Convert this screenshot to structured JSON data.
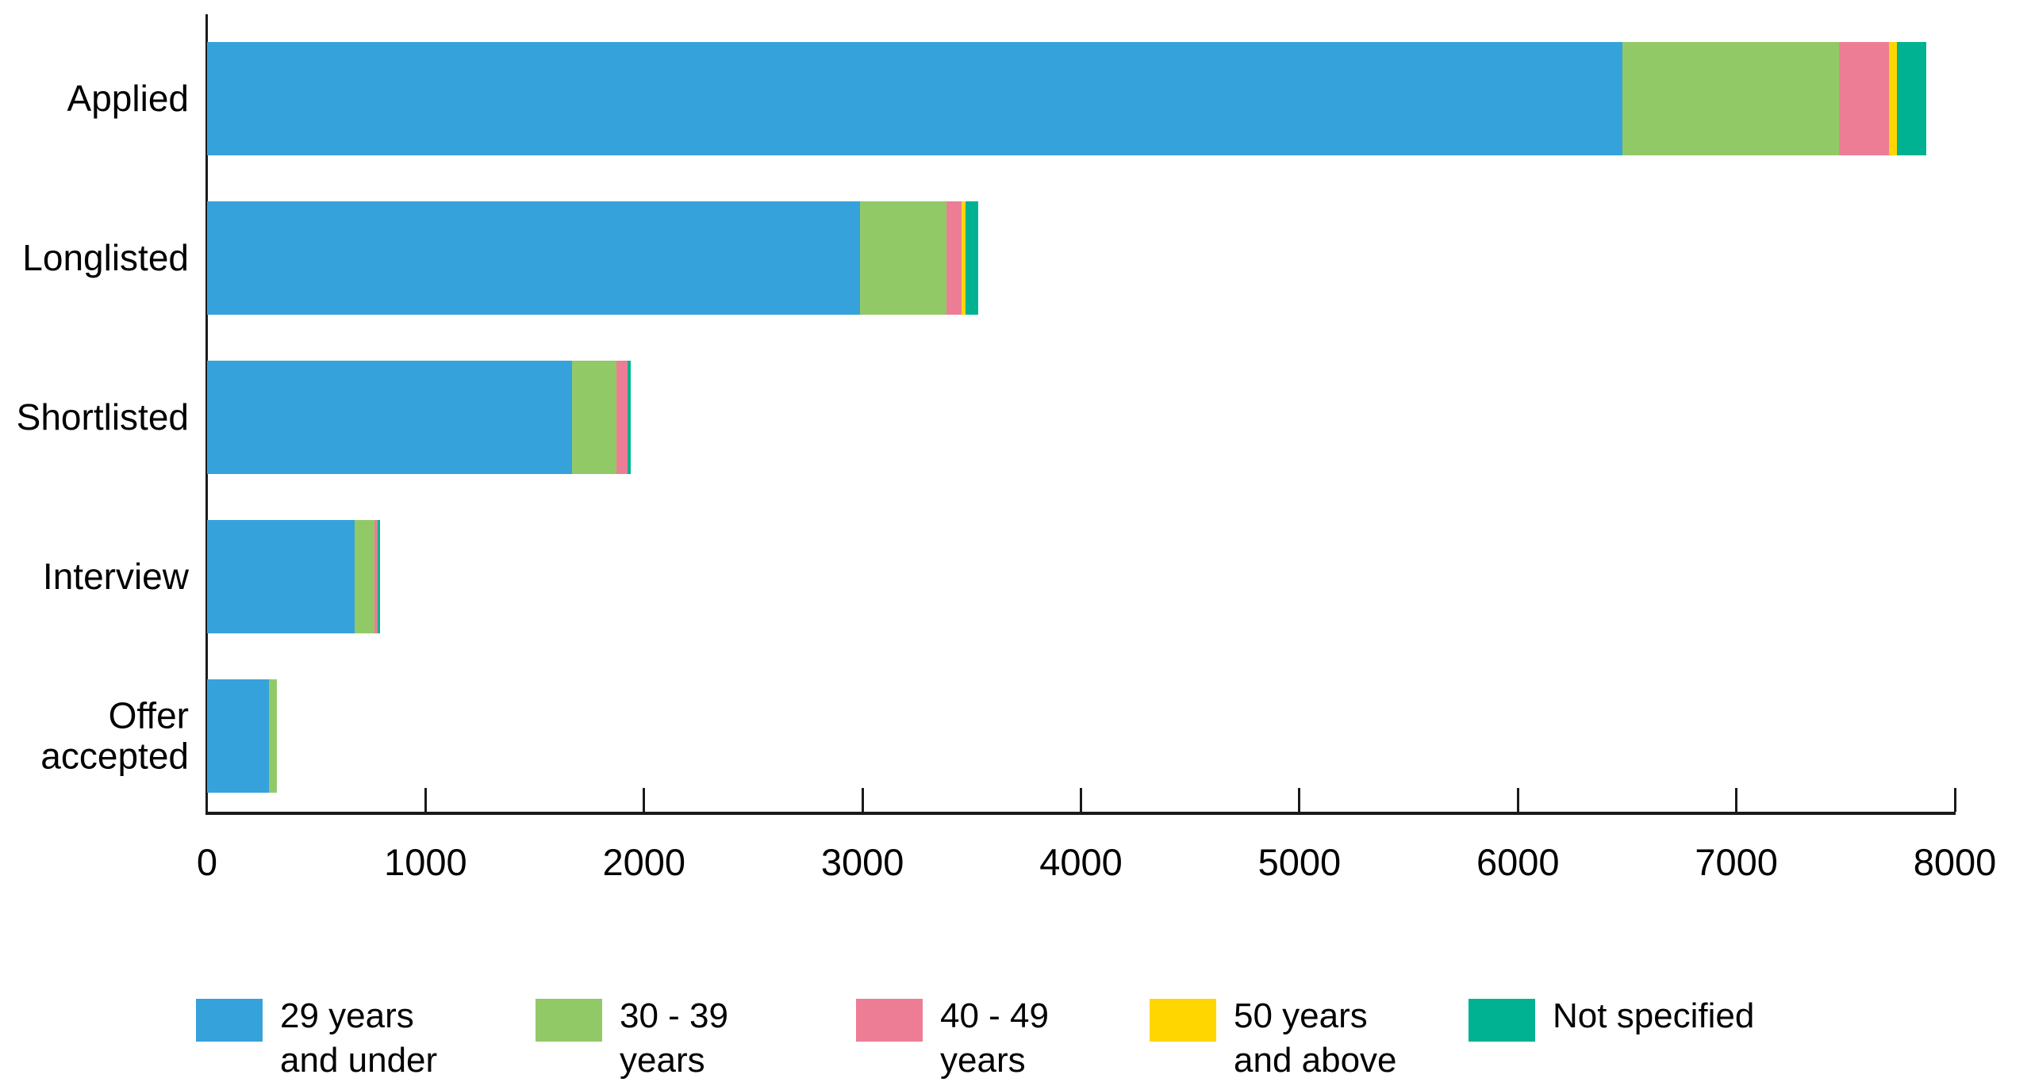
{
  "chart_data": {
    "type": "bar",
    "variant": "horizontal-stacked",
    "title": "",
    "categories": [
      "Applied",
      "Longlisted",
      "Shortlisted",
      "Interview",
      "Offer accepted"
    ],
    "series": [
      {
        "name": "29 years and under",
        "legend_label": "29 years\nand under",
        "color": "#36A2DB",
        "values": [
          6480,
          2990,
          1670,
          675,
          285
        ]
      },
      {
        "name": "30 - 39 years",
        "legend_label": "30 - 39\nyears",
        "color": "#92C967",
        "values": [
          990,
          395,
          205,
          90,
          35
        ]
      },
      {
        "name": "40 - 49 years",
        "legend_label": "40 - 49\nyears",
        "color": "#ED7D95",
        "values": [
          230,
          70,
          50,
          15,
          0
        ]
      },
      {
        "name": "50 years and above",
        "legend_label": "50 years\nand above",
        "color": "#FFD600",
        "values": [
          35,
          15,
          0,
          0,
          0
        ]
      },
      {
        "name": "Not specified",
        "legend_label": "Not specified",
        "color": "#00B292",
        "values": [
          135,
          60,
          15,
          10,
          0
        ]
      }
    ],
    "category_totals": [
      7870,
      3530,
      1940,
      790,
      320
    ],
    "x_axis": {
      "min": 0,
      "max": 8000,
      "tick_interval": 1000,
      "tick_labels": [
        "0",
        "1000",
        "2000",
        "3000",
        "4000",
        "5000",
        "6000",
        "7000",
        "8000"
      ]
    },
    "grid": false,
    "legend_position": "bottom",
    "axis_color": "#1A1A1A",
    "text_color": "#000000",
    "background_color": "#FFFFFF"
  }
}
